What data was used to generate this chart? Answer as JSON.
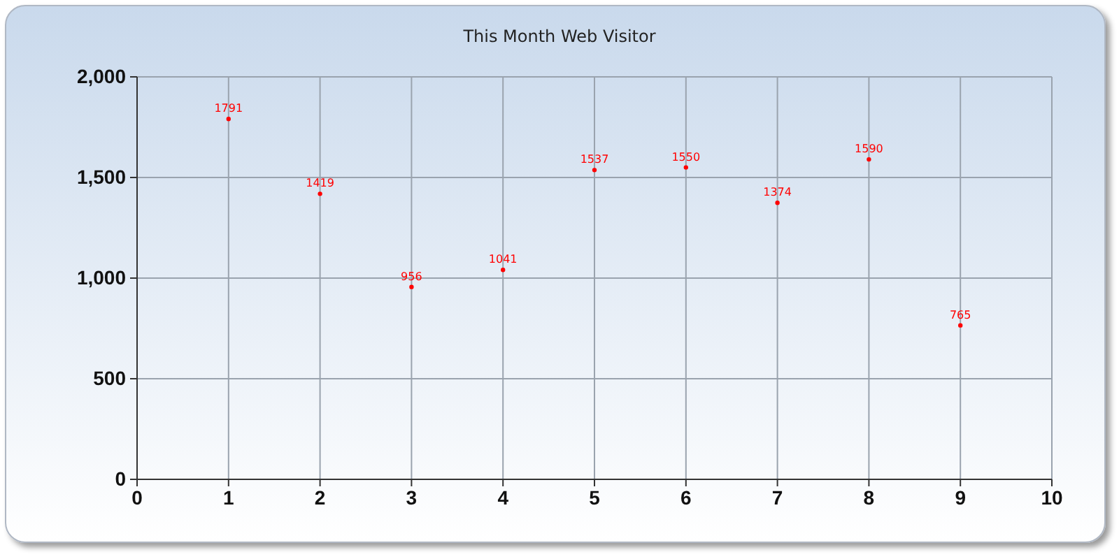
{
  "chart_data": {
    "type": "scatter",
    "title": "This Month Web Visitor",
    "x": [
      1,
      2,
      3,
      4,
      5,
      6,
      7,
      8,
      9
    ],
    "series": [
      {
        "color": "#ff0000",
        "values": [
          1791,
          1419,
          956,
          1041,
          1537,
          1550,
          1374,
          1590,
          765
        ]
      }
    ],
    "marker": "circle",
    "data_labels": true,
    "grid": true,
    "xlim": [
      0,
      10
    ],
    "xticks": [
      0,
      1,
      2,
      3,
      4,
      5,
      6,
      7,
      8,
      9,
      10
    ],
    "ylim": [
      0,
      2000
    ],
    "yticks": [
      {
        "value": 0,
        "label": "0"
      },
      {
        "value": 500,
        "label": "500"
      },
      {
        "value": 1000,
        "label": "1,000"
      },
      {
        "value": 1500,
        "label": "1,500"
      },
      {
        "value": 2000,
        "label": "2,000"
      }
    ]
  }
}
